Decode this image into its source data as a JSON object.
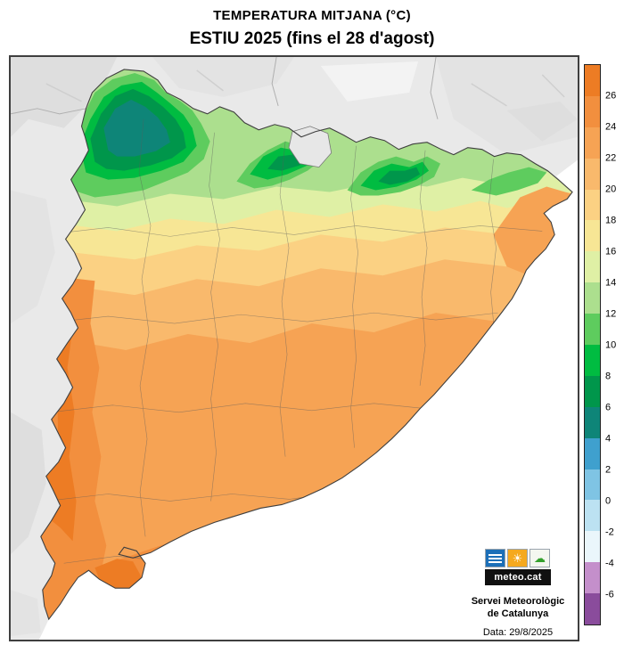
{
  "header": {
    "title": "TEMPERATURA MITJANA (°C)",
    "subtitle": "ESTIU 2025 (fins el 28 d'agost)"
  },
  "legend": {
    "unit": "°C",
    "ticks": [
      "26",
      "24",
      "22",
      "20",
      "18",
      "16",
      "14",
      "12",
      "10",
      "8",
      "6",
      "4",
      "2",
      "0",
      "-2",
      "-4",
      "-6"
    ],
    "colors": [
      "#ED7C24",
      "#F28F3E",
      "#F6A354",
      "#F9B96C",
      "#FBD183",
      "#F7E695",
      "#DFF0A5",
      "#ACDF8E",
      "#5ECC5E",
      "#00BC41",
      "#00964B",
      "#0E8578",
      "#3FA0CE",
      "#7FC4E4",
      "#BCE2F2",
      "#EAF6FB",
      "#C48FCB",
      "#8A4C9C"
    ]
  },
  "map": {
    "sea": "#FFFFFF",
    "land_outside": "#E9E9E9",
    "relief_dark": "#DEDEDE",
    "relief_mid": "#E3E3E3",
    "relief_light": "#F3F3F3",
    "border_color": "#3F3F3F",
    "boundary_color": "#5C5C5C",
    "andorra_fill": "#E7E7E7"
  },
  "logo": {
    "wordmark": "meteo.cat",
    "panel_blue": "#1C6FB8",
    "panel_yellow": "#F5A91F",
    "panel_light": "#F4F7F0",
    "panel_green": "#33A02C",
    "bar_bg": "#101010"
  },
  "attribution": {
    "line1": "Servei Meteorològic",
    "line2": "de Catalunya",
    "date": "Data: 29/8/2025"
  }
}
